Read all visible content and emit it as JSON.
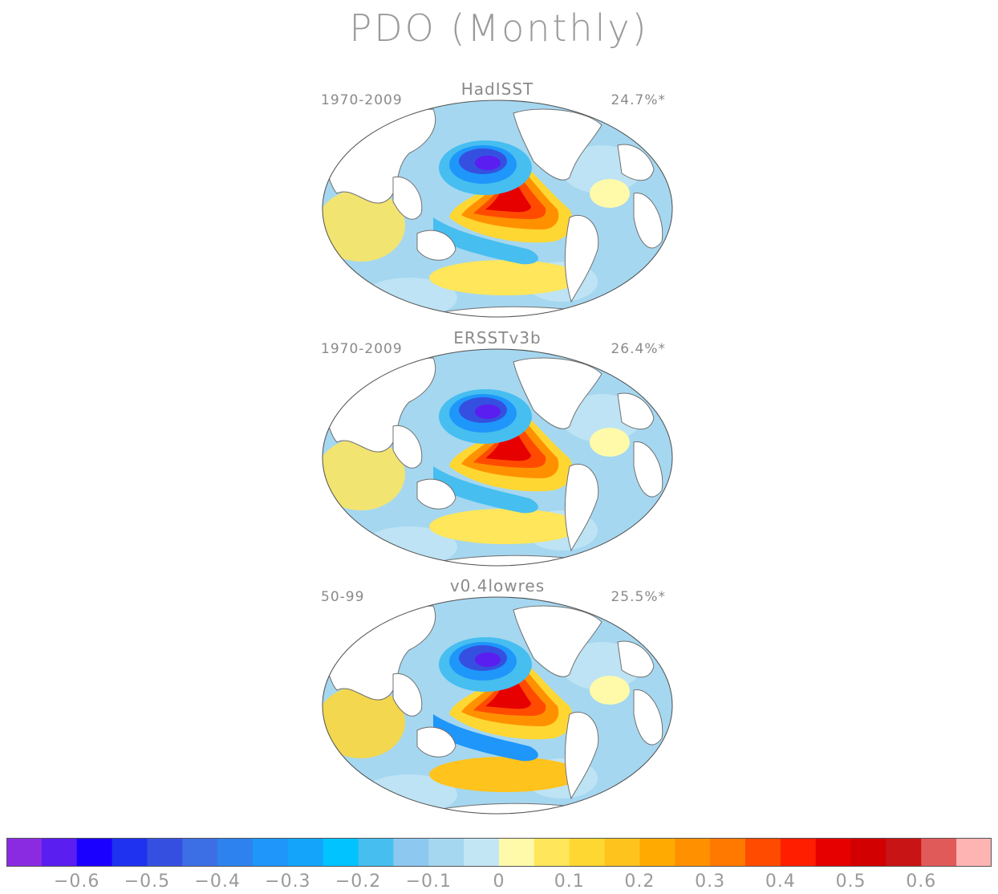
{
  "figure": {
    "title": "PDO (Monthly)"
  },
  "panels": [
    {
      "title": "HadISST",
      "period": "1970-2009",
      "variance": "24.7%*"
    },
    {
      "title": "ERSSTv3b",
      "period": "1970-2009",
      "variance": "26.4%*"
    },
    {
      "title": "v0.4lowres",
      "period": "50-99",
      "variance": "25.5%*"
    }
  ],
  "colorbar": {
    "colors": [
      "#8a2be2",
      "#5a1ef0",
      "#1a00ff",
      "#1e32f0",
      "#3550e0",
      "#3c6ee6",
      "#2d82f0",
      "#1e96fa",
      "#14a5fa",
      "#00c3ff",
      "#46bef0",
      "#8cc8f0",
      "#a5d7f0",
      "#c3e6f5",
      "#fffaaa",
      "#ffe65a",
      "#ffd732",
      "#ffc31e",
      "#ffaa00",
      "#ff9100",
      "#ff7800",
      "#ff4b00",
      "#ff1e00",
      "#e60000",
      "#d20000",
      "#c81414",
      "#e05a5a",
      "#ffb4b4"
    ],
    "labels": [
      "-0.6",
      "-0.5",
      "-0.4",
      "-0.3",
      "-0.2",
      "-0.1",
      "0",
      "0.1",
      "0.2",
      "0.3",
      "0.4",
      "0.5",
      "0.6"
    ]
  }
}
